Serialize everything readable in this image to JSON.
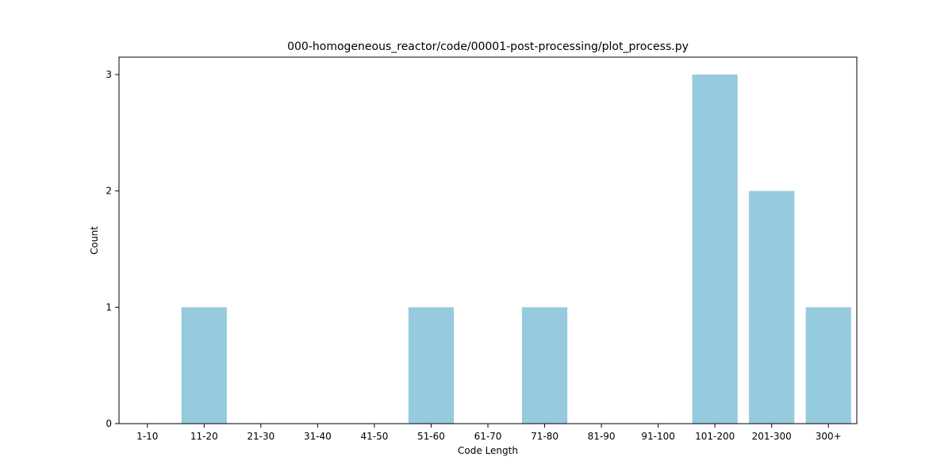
{
  "chart_data": {
    "type": "bar",
    "title": "000-homogeneous_reactor/code/00001-post-processing/plot_process.py",
    "xlabel": "Code Length",
    "ylabel": "Count",
    "categories": [
      "1-10",
      "11-20",
      "21-30",
      "31-40",
      "41-50",
      "51-60",
      "61-70",
      "71-80",
      "81-90",
      "91-100",
      "101-200",
      "201-300",
      "300+"
    ],
    "values": [
      0,
      1,
      0,
      0,
      0,
      1,
      0,
      1,
      0,
      0,
      3,
      2,
      1
    ],
    "ylim": [
      0,
      3.15
    ],
    "yticks": [
      "0",
      "1",
      "2",
      "3"
    ],
    "bar_color": "#96cadf",
    "grid": false,
    "legend": "none"
  }
}
